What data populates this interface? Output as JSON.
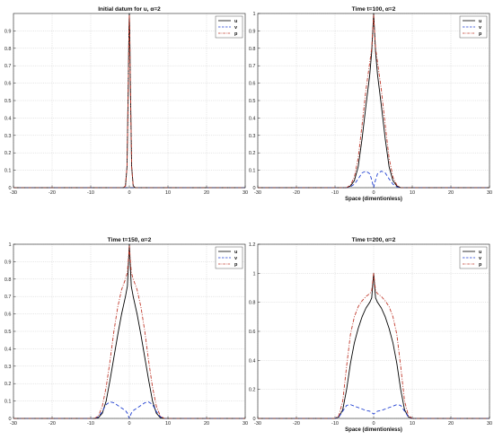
{
  "chart_data": [
    {
      "type": "line",
      "title": "Initial datum for u, α=2",
      "xlabel": "",
      "ylabel": "",
      "xlim": [
        -30,
        30
      ],
      "ylim": [
        0,
        1
      ],
      "xticks": [
        -30,
        -20,
        -10,
        0,
        10,
        20,
        30
      ],
      "yticks": [
        0,
        0.1,
        0.2,
        0.3,
        0.4,
        0.5,
        0.6,
        0.7,
        0.8,
        0.9
      ],
      "grid": true,
      "legend": "top-right",
      "series": [
        {
          "name": "u",
          "color": "#000000",
          "dash": "solid",
          "x": [
            -30,
            -1.5,
            -1.0,
            -0.6,
            -0.3,
            -0.1,
            0,
            0.1,
            0.3,
            0.6,
            1.0,
            1.5,
            30
          ],
          "y": [
            0,
            0,
            0.01,
            0.12,
            0.55,
            0.9,
            1.0,
            0.9,
            0.55,
            0.12,
            0.01,
            0,
            0
          ]
        },
        {
          "name": "v",
          "color": "#1f3fd1",
          "dash": "dash",
          "x": [
            -30,
            30
          ],
          "y": [
            0,
            0
          ]
        },
        {
          "name": "p",
          "color": "#c0392b",
          "dash": "dashdot",
          "x": [
            -30,
            -1.5,
            -1.0,
            -0.6,
            -0.3,
            -0.1,
            0,
            0.1,
            0.3,
            0.6,
            1.0,
            1.5,
            30
          ],
          "y": [
            0,
            0,
            0.01,
            0.12,
            0.55,
            0.9,
            0.99,
            0.9,
            0.55,
            0.12,
            0.01,
            0,
            0
          ]
        }
      ]
    },
    {
      "type": "line",
      "title": "Time t=100, α=2",
      "xlabel": "Space (dimentionless)",
      "ylabel": "",
      "xlim": [
        -30,
        30
      ],
      "ylim": [
        0,
        1
      ],
      "xticks": [
        -30,
        -20,
        -10,
        0,
        10,
        20,
        30
      ],
      "yticks": [
        0,
        0.1,
        0.2,
        0.3,
        0.4,
        0.5,
        0.6,
        0.7,
        0.8,
        0.9,
        1
      ],
      "grid": true,
      "legend": "top-right",
      "series": [
        {
          "name": "u",
          "color": "#000000",
          "dash": "solid",
          "x": [
            -30,
            -7,
            -6,
            -5,
            -4,
            -3,
            -2,
            -1,
            -0.5,
            0,
            0.5,
            1,
            2,
            3,
            4,
            5,
            6,
            7,
            30
          ],
          "y": [
            0,
            0,
            0.01,
            0.04,
            0.12,
            0.28,
            0.47,
            0.65,
            0.78,
            1.0,
            0.78,
            0.65,
            0.47,
            0.28,
            0.12,
            0.04,
            0.01,
            0,
            0
          ]
        },
        {
          "name": "v",
          "color": "#1f3fd1",
          "dash": "dash",
          "x": [
            -30,
            -7,
            -6,
            -5,
            -4,
            -3,
            -2,
            -1,
            -0.5,
            0,
            0.5,
            1,
            2,
            3,
            4,
            5,
            6,
            7,
            30
          ],
          "y": [
            0,
            0,
            0.005,
            0.02,
            0.05,
            0.085,
            0.095,
            0.08,
            0.045,
            0.0,
            0.045,
            0.08,
            0.095,
            0.085,
            0.05,
            0.02,
            0.005,
            0,
            0
          ]
        },
        {
          "name": "p",
          "color": "#c0392b",
          "dash": "dashdot",
          "x": [
            -30,
            -7,
            -6,
            -5,
            -4,
            -3,
            -2,
            -1,
            -0.5,
            0,
            0.5,
            1,
            2,
            3,
            4,
            5,
            6,
            7,
            30
          ],
          "y": [
            0,
            0,
            0.015,
            0.06,
            0.17,
            0.36,
            0.56,
            0.72,
            0.8,
            0.99,
            0.8,
            0.72,
            0.56,
            0.36,
            0.17,
            0.06,
            0.015,
            0,
            0
          ]
        }
      ]
    },
    {
      "type": "line",
      "title": "Time t=150, α=2",
      "xlabel": "",
      "ylabel": "",
      "xlim": [
        -30,
        30
      ],
      "ylim": [
        0,
        1
      ],
      "xticks": [
        -30,
        -20,
        -10,
        0,
        10,
        20,
        30
      ],
      "yticks": [
        0,
        0.1,
        0.2,
        0.3,
        0.4,
        0.5,
        0.6,
        0.7,
        0.8,
        0.9,
        1
      ],
      "grid": true,
      "legend": "top-right",
      "series": [
        {
          "name": "u",
          "color": "#000000",
          "dash": "solid",
          "x": [
            -30,
            -9,
            -8,
            -7,
            -6,
            -5,
            -4,
            -3,
            -2,
            -1,
            -0.5,
            0,
            0.5,
            1,
            2,
            3,
            4,
            5,
            6,
            7,
            8,
            9,
            30
          ],
          "y": [
            0,
            0,
            0.005,
            0.03,
            0.1,
            0.22,
            0.35,
            0.48,
            0.6,
            0.7,
            0.76,
            1.0,
            0.76,
            0.7,
            0.6,
            0.48,
            0.35,
            0.22,
            0.1,
            0.03,
            0.005,
            0,
            0
          ]
        },
        {
          "name": "v",
          "color": "#1f3fd1",
          "dash": "dash",
          "x": [
            -30,
            -9,
            -8,
            -7,
            -6,
            -5,
            -4,
            -3,
            -2,
            -1,
            -0.5,
            0,
            0.5,
            1,
            2,
            3,
            4,
            5,
            6,
            7,
            8,
            9,
            30
          ],
          "y": [
            0,
            0,
            0.01,
            0.04,
            0.08,
            0.095,
            0.09,
            0.075,
            0.06,
            0.045,
            0.03,
            0.0,
            0.03,
            0.045,
            0.06,
            0.075,
            0.09,
            0.095,
            0.08,
            0.04,
            0.01,
            0,
            0
          ]
        },
        {
          "name": "p",
          "color": "#c0392b",
          "dash": "dashdot",
          "x": [
            -30,
            -9,
            -8,
            -7,
            -6,
            -5,
            -4,
            -3,
            -2,
            -1,
            -0.5,
            0,
            0.5,
            1,
            2,
            3,
            4,
            5,
            6,
            7,
            8,
            9,
            30
          ],
          "y": [
            0,
            0,
            0.015,
            0.07,
            0.18,
            0.33,
            0.5,
            0.64,
            0.74,
            0.8,
            0.84,
            0.99,
            0.84,
            0.8,
            0.74,
            0.64,
            0.5,
            0.33,
            0.18,
            0.07,
            0.015,
            0,
            0
          ]
        }
      ]
    },
    {
      "type": "line",
      "title": "Time t=200, α=2",
      "xlabel": "Space (dimentionless)",
      "ylabel": "",
      "xlim": [
        -30,
        30
      ],
      "ylim": [
        0,
        1.2
      ],
      "xticks": [
        -30,
        -20,
        -10,
        0,
        10,
        20,
        30
      ],
      "yticks": [
        0,
        0.2,
        0.4,
        0.6,
        0.8,
        1,
        1.2
      ],
      "grid": true,
      "legend": "top-right",
      "series": [
        {
          "name": "u",
          "color": "#000000",
          "dash": "solid",
          "x": [
            -30,
            -10,
            -9,
            -8,
            -7,
            -6,
            -5,
            -4,
            -3,
            -2,
            -1,
            -0.5,
            0,
            0.5,
            1,
            2,
            3,
            4,
            5,
            6,
            7,
            8,
            9,
            10,
            30
          ],
          "y": [
            0,
            0,
            0.01,
            0.06,
            0.2,
            0.38,
            0.52,
            0.62,
            0.7,
            0.76,
            0.8,
            0.83,
            1.0,
            0.83,
            0.8,
            0.76,
            0.7,
            0.62,
            0.52,
            0.38,
            0.2,
            0.06,
            0.01,
            0,
            0
          ]
        },
        {
          "name": "v",
          "color": "#1f3fd1",
          "dash": "dash",
          "x": [
            -30,
            -10,
            -9,
            -8,
            -7,
            -6,
            -5,
            -4,
            -3,
            -2,
            -1,
            -0.5,
            0,
            0.5,
            1,
            2,
            3,
            4,
            5,
            6,
            7,
            8,
            9,
            10,
            30
          ],
          "y": [
            0,
            0,
            0.01,
            0.05,
            0.09,
            0.095,
            0.085,
            0.075,
            0.065,
            0.055,
            0.05,
            0.04,
            0.03,
            0.04,
            0.05,
            0.055,
            0.065,
            0.075,
            0.085,
            0.095,
            0.09,
            0.05,
            0.01,
            0,
            0
          ]
        },
        {
          "name": "p",
          "color": "#c0392b",
          "dash": "dashdot",
          "x": [
            -30,
            -10,
            -9,
            -8,
            -7,
            -6,
            -5,
            -4,
            -3,
            -2,
            -1,
            -0.5,
            0,
            0.5,
            1,
            2,
            3,
            4,
            5,
            6,
            7,
            8,
            9,
            10,
            30
          ],
          "y": [
            0,
            0,
            0.02,
            0.12,
            0.36,
            0.58,
            0.7,
            0.77,
            0.81,
            0.84,
            0.86,
            0.88,
            1.0,
            0.88,
            0.86,
            0.84,
            0.81,
            0.77,
            0.7,
            0.58,
            0.36,
            0.12,
            0.02,
            0,
            0
          ]
        }
      ]
    }
  ]
}
